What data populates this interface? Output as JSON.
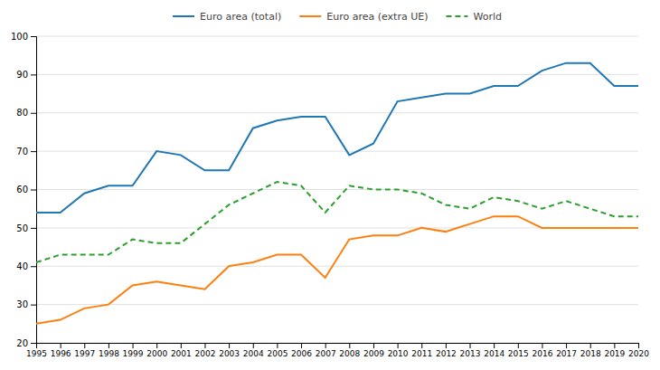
{
  "chart_data": {
    "type": "line",
    "x": [
      1995,
      1996,
      1997,
      1998,
      1999,
      2000,
      2001,
      2002,
      2003,
      2004,
      2005,
      2006,
      2007,
      2008,
      2009,
      2010,
      2011,
      2012,
      2013,
      2014,
      2015,
      2016,
      2017,
      2018,
      2019,
      2020
    ],
    "series": [
      {
        "name": "Euro area (total)",
        "line_style": "solid",
        "values": [
          54,
          54,
          59,
          61,
          61,
          70,
          69,
          65,
          65,
          76,
          78,
          79,
          79,
          69,
          72,
          83,
          84,
          85,
          85,
          87,
          87,
          91,
          93,
          93,
          87,
          87
        ]
      },
      {
        "name": "Euro area (extra UE)",
        "line_style": "solid",
        "values": [
          25,
          26,
          29,
          30,
          35,
          36,
          35,
          34,
          40,
          41,
          43,
          43,
          37,
          47,
          48,
          48,
          50,
          49,
          51,
          53,
          53,
          50,
          50,
          50,
          50,
          50
        ]
      },
      {
        "name": "World",
        "line_style": "dashed",
        "values": [
          41,
          43,
          43,
          43,
          47,
          46,
          46,
          51,
          56,
          59,
          62,
          61,
          54,
          61,
          60,
          60,
          59,
          56,
          55,
          58,
          57,
          55,
          57,
          55,
          53,
          53
        ]
      }
    ],
    "xlim": [
      1995,
      2020
    ],
    "xticks": [
      1995,
      1996,
      1997,
      1998,
      1999,
      2000,
      2001,
      2002,
      2003,
      2004,
      2005,
      2006,
      2007,
      2008,
      2009,
      2010,
      2011,
      2012,
      2013,
      2014,
      2015,
      2016,
      2017,
      2018,
      2019,
      2020
    ],
    "ylim": [
      20,
      100
    ],
    "yticks": [
      20,
      30,
      40,
      50,
      60,
      70,
      80,
      90,
      100
    ],
    "grid": true,
    "legend": "top"
  }
}
